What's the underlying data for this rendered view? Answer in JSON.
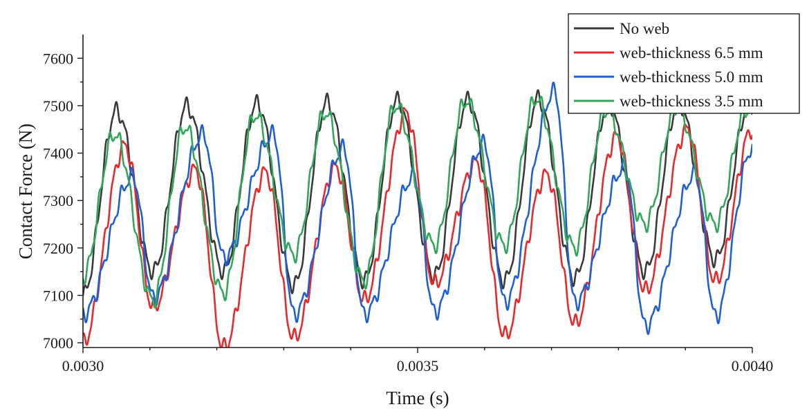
{
  "chart_data": {
    "type": "line",
    "title": "",
    "xlabel": "Time (s)",
    "ylabel": "Contact Force (N)",
    "xlim": [
      0.003,
      0.004
    ],
    "ylim": [
      6990,
      7650
    ],
    "x_ticks": [
      0.003,
      0.0035,
      0.004
    ],
    "x_tick_labels": [
      "0.0030",
      "0.0035",
      "0.0040"
    ],
    "y_ticks": [
      7000,
      7100,
      7200,
      7300,
      7400,
      7500,
      7600
    ],
    "y_tick_labels": [
      "7000",
      "7100",
      "7200",
      "7300",
      "7400",
      "7500",
      "7600"
    ],
    "legend_position": "top-right",
    "period": 0.000105,
    "series": [
      {
        "name": "No web",
        "color": "#3a3a3a",
        "peaks": [
          [
            0.00305,
            7490
          ],
          [
            0.003155,
            7500
          ],
          [
            0.00326,
            7505
          ],
          [
            0.003365,
            7508
          ],
          [
            0.00347,
            7512
          ],
          [
            0.003575,
            7512
          ],
          [
            0.00368,
            7515
          ],
          [
            0.003785,
            7505
          ],
          [
            0.00389,
            7505
          ],
          [
            0.003995,
            7500
          ]
        ],
        "troughs": [
          [
            0.003,
            7100
          ],
          [
            0.003105,
            7150
          ],
          [
            0.00321,
            7150
          ],
          [
            0.003315,
            7120
          ],
          [
            0.00342,
            7130
          ],
          [
            0.003525,
            7140
          ],
          [
            0.00363,
            7130
          ],
          [
            0.003735,
            7135
          ],
          [
            0.00384,
            7150
          ],
          [
            0.003945,
            7175
          ]
        ]
      },
      {
        "name": "web-thickness 6.5 mm",
        "color": "#e8282b",
        "peaks": [
          [
            0.003063,
            7415
          ],
          [
            0.003168,
            7365
          ],
          [
            0.003273,
            7360
          ],
          [
            0.003378,
            7370
          ],
          [
            0.003483,
            7485
          ],
          [
            0.003588,
            7380
          ],
          [
            0.003693,
            7355
          ],
          [
            0.003798,
            7435
          ],
          [
            0.003903,
            7450
          ],
          [
            0.004,
            7450
          ]
        ],
        "troughs": [
          [
            0.003,
            7000
          ],
          [
            0.003105,
            7075
          ],
          [
            0.00321,
            6990
          ],
          [
            0.003315,
            7010
          ],
          [
            0.00342,
            7090
          ],
          [
            0.003525,
            7125
          ],
          [
            0.00363,
            7015
          ],
          [
            0.003735,
            7040
          ],
          [
            0.00384,
            7110
          ],
          [
            0.003945,
            7130
          ]
        ]
      },
      {
        "name": "web-thickness 5.0 mm",
        "color": "#1f5fd6",
        "peaks": [
          [
            0.003075,
            7350
          ],
          [
            0.00318,
            7440
          ],
          [
            0.003285,
            7440
          ],
          [
            0.00339,
            7410
          ],
          [
            0.003495,
            7350
          ],
          [
            0.0036,
            7420
          ],
          [
            0.003705,
            7530
          ],
          [
            0.00381,
            7370
          ],
          [
            0.003915,
            7355
          ],
          [
            0.004,
            7410
          ]
        ],
        "troughs": [
          [
            0.003,
            7060
          ],
          [
            0.003105,
            7095
          ],
          [
            0.00321,
            7180
          ],
          [
            0.003315,
            7060
          ],
          [
            0.00342,
            7060
          ],
          [
            0.003525,
            7065
          ],
          [
            0.00363,
            7085
          ],
          [
            0.003735,
            7085
          ],
          [
            0.00384,
            7035
          ],
          [
            0.003945,
            7055
          ]
        ]
      },
      {
        "name": "web-thickness 3.5 mm",
        "color": "#33a65a",
        "peaks": [
          [
            0.003047,
            7440
          ],
          [
            0.003152,
            7455
          ],
          [
            0.003257,
            7480
          ],
          [
            0.003362,
            7485
          ],
          [
            0.003467,
            7500
          ],
          [
            0.003572,
            7510
          ],
          [
            0.003677,
            7515
          ],
          [
            0.003782,
            7490
          ],
          [
            0.003887,
            7495
          ],
          [
            0.003992,
            7490
          ]
        ],
        "troughs": [
          [
            0.003,
            7140
          ],
          [
            0.003105,
            7090
          ],
          [
            0.00321,
            7105
          ],
          [
            0.003315,
            7185
          ],
          [
            0.00342,
            7130
          ],
          [
            0.003525,
            7205
          ],
          [
            0.00363,
            7205
          ],
          [
            0.003735,
            7200
          ],
          [
            0.00384,
            7250
          ],
          [
            0.003945,
            7250
          ]
        ]
      }
    ]
  }
}
